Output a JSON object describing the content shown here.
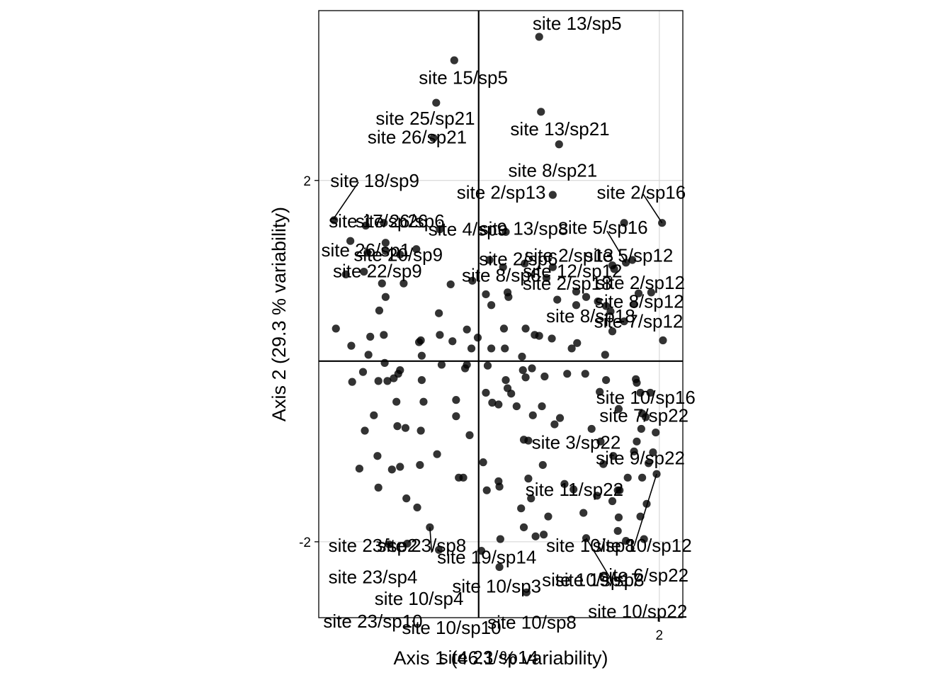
{
  "chart_data": {
    "type": "scatter",
    "title": "",
    "xlabel": "Axis 1 (46.1 % variability)",
    "ylabel": "Axis 2 (29.3 % variability)",
    "xlim": [
      -1.77,
      2.26
    ],
    "ylim": [
      -2.84,
      3.88
    ],
    "x_ticks": [
      2
    ],
    "y_ticks": [
      -2,
      2
    ],
    "grid": true,
    "reference_lines": {
      "x": 0,
      "y": 0
    },
    "point_color": "#000000",
    "point_opacity": 0.8,
    "points": [
      {
        "x": 0.67,
        "y": 3.59
      },
      {
        "x": -0.27,
        "y": 3.33
      },
      {
        "x": 0.69,
        "y": 2.76
      },
      {
        "x": -0.47,
        "y": 2.86
      },
      {
        "x": 0.89,
        "y": 2.4
      },
      {
        "x": -0.5,
        "y": 2.47
      },
      {
        "x": 0.82,
        "y": 1.84
      },
      {
        "x": 1.61,
        "y": 1.53
      },
      {
        "x": -1.6,
        "y": 1.56
      },
      {
        "x": -1.05,
        "y": 1.53
      },
      {
        "x": -0.43,
        "y": 1.46
      },
      {
        "x": -1.25,
        "y": 1.5
      },
      {
        "x": 0.3,
        "y": 1.43
      },
      {
        "x": -1.42,
        "y": 1.33
      },
      {
        "x": -1.03,
        "y": 1.31
      },
      {
        "x": -0.69,
        "y": 1.24
      },
      {
        "x": -1.03,
        "y": 1.22
      },
      {
        "x": -0.87,
        "y": 1.18
      },
      {
        "x": -1.23,
        "y": 1.2
      },
      {
        "x": 0.51,
        "y": 1.08
      },
      {
        "x": 0.12,
        "y": 1.12
      },
      {
        "x": 0.82,
        "y": 1.04
      },
      {
        "x": 1.48,
        "y": 1.06
      },
      {
        "x": 1.5,
        "y": 1.02
      },
      {
        "x": 0.27,
        "y": 1.04
      },
      {
        "x": 0.75,
        "y": 0.92
      },
      {
        "x": -1.47,
        "y": 0.96
      },
      {
        "x": -1.27,
        "y": 0.99
      },
      {
        "x": -1.07,
        "y": 0.86
      },
      {
        "x": -0.83,
        "y": 0.86
      },
      {
        "x": -0.31,
        "y": 0.85
      },
      {
        "x": -0.07,
        "y": 0.89
      },
      {
        "x": -1.03,
        "y": 0.71
      },
      {
        "x": 0.32,
        "y": 0.76
      },
      {
        "x": 1.08,
        "y": 0.77
      },
      {
        "x": 1.77,
        "y": 0.75
      },
      {
        "x": 1.19,
        "y": 0.71
      },
      {
        "x": 0.08,
        "y": 0.74
      },
      {
        "x": 0.33,
        "y": 0.71
      },
      {
        "x": 0.87,
        "y": 0.68
      },
      {
        "x": 1.32,
        "y": 0.66
      },
      {
        "x": -1.1,
        "y": 0.56
      },
      {
        "x": -0.44,
        "y": 0.53
      },
      {
        "x": 0.14,
        "y": 0.62
      },
      {
        "x": 1.46,
        "y": 0.55
      },
      {
        "x": 1.08,
        "y": 0.62
      },
      {
        "x": -1.58,
        "y": 0.36
      },
      {
        "x": -1.05,
        "y": 0.29
      },
      {
        "x": -0.43,
        "y": 0.29
      },
      {
        "x": -0.13,
        "y": 0.35
      },
      {
        "x": 0.28,
        "y": 0.36
      },
      {
        "x": 0.62,
        "y": 0.29
      },
      {
        "x": 0.52,
        "y": 0.36
      },
      {
        "x": -1.2,
        "y": 0.27
      },
      {
        "x": -0.64,
        "y": 0.23
      },
      {
        "x": -0.66,
        "y": 0.21
      },
      {
        "x": -0.29,
        "y": 0.22
      },
      {
        "x": -0.01,
        "y": 0.26
      },
      {
        "x": 0.81,
        "y": 0.25
      },
      {
        "x": 0.67,
        "y": 0.28
      },
      {
        "x": -0.08,
        "y": 0.14
      },
      {
        "x": 0.14,
        "y": 0.14
      },
      {
        "x": 0.29,
        "y": 0.14
      },
      {
        "x": 1.03,
        "y": 0.14
      },
      {
        "x": 1.09,
        "y": 0.2
      },
      {
        "x": -1.41,
        "y": 0.17
      },
      {
        "x": -1.22,
        "y": 0.07
      },
      {
        "x": -0.63,
        "y": 0.06
      },
      {
        "x": 0.48,
        "y": 0.05
      },
      {
        "x": -1.04,
        "y": -0.02
      },
      {
        "x": -0.41,
        "y": -0.04
      },
      {
        "x": -0.13,
        "y": -0.04
      },
      {
        "x": 0.59,
        "y": -0.08
      },
      {
        "x": 1.4,
        "y": 0.07
      },
      {
        "x": -1.28,
        "y": -0.12
      },
      {
        "x": -0.87,
        "y": -0.1
      },
      {
        "x": -0.15,
        "y": -0.08
      },
      {
        "x": 0.1,
        "y": -0.05
      },
      {
        "x": 0.73,
        "y": -0.17
      },
      {
        "x": 0.52,
        "y": -0.18
      },
      {
        "x": -1.01,
        "y": -0.22
      },
      {
        "x": -0.89,
        "y": -0.14
      },
      {
        "x": -0.94,
        "y": -0.19
      },
      {
        "x": 0.3,
        "y": -0.21
      },
      {
        "x": 0.49,
        "y": -0.1
      },
      {
        "x": 0.98,
        "y": -0.14
      },
      {
        "x": 1.18,
        "y": -0.14
      },
      {
        "x": 1.41,
        "y": -0.21
      },
      {
        "x": 1.74,
        "y": -0.2
      },
      {
        "x": 1.75,
        "y": -0.24
      },
      {
        "x": -1.4,
        "y": -0.23
      },
      {
        "x": -1.11,
        "y": -0.22
      },
      {
        "x": -0.63,
        "y": -0.21
      },
      {
        "x": 0.32,
        "y": -0.3
      },
      {
        "x": 0.36,
        "y": -0.36
      },
      {
        "x": 1.34,
        "y": -0.34
      },
      {
        "x": 1.79,
        "y": -0.35
      },
      {
        "x": -0.91,
        "y": -0.45
      },
      {
        "x": -0.61,
        "y": -0.45
      },
      {
        "x": -0.25,
        "y": -0.43
      },
      {
        "x": 0.15,
        "y": -0.46
      },
      {
        "x": -0.25,
        "y": -0.61
      },
      {
        "x": 0.22,
        "y": -0.48
      },
      {
        "x": 0.6,
        "y": -0.6
      },
      {
        "x": 0.42,
        "y": -0.5
      },
      {
        "x": 0.7,
        "y": -0.5
      },
      {
        "x": 1.55,
        "y": -0.53
      },
      {
        "x": 1.81,
        "y": -0.58
      },
      {
        "x": -1.16,
        "y": -0.6
      },
      {
        "x": 0.08,
        "y": -0.35
      },
      {
        "x": 0.84,
        "y": -0.7
      },
      {
        "x": 1.85,
        "y": -0.62
      },
      {
        "x": 0.9,
        "y": -0.63
      },
      {
        "x": -1.26,
        "y": -0.77
      },
      {
        "x": -0.9,
        "y": -0.72
      },
      {
        "x": -0.81,
        "y": -0.74
      },
      {
        "x": 1.25,
        "y": -0.75
      },
      {
        "x": 1.8,
        "y": -0.75
      },
      {
        "x": -0.64,
        "y": -0.77
      },
      {
        "x": -0.1,
        "y": -0.82
      },
      {
        "x": 0.5,
        "y": -0.87
      },
      {
        "x": 0.55,
        "y": -0.88
      },
      {
        "x": 1.35,
        "y": -0.89
      },
      {
        "x": 1.75,
        "y": -0.89
      },
      {
        "x": 1.96,
        "y": -0.79
      },
      {
        "x": 1.72,
        "y": -1.0
      },
      {
        "x": -1.12,
        "y": -1.05
      },
      {
        "x": -0.46,
        "y": -1.03
      },
      {
        "x": 0.71,
        "y": -1.15
      },
      {
        "x": 1.93,
        "y": -1.01
      },
      {
        "x": -0.65,
        "y": -1.15
      },
      {
        "x": 0.05,
        "y": -1.12
      },
      {
        "x": 1.49,
        "y": -1.05
      },
      {
        "x": -1.32,
        "y": -1.19
      },
      {
        "x": -0.87,
        "y": -1.17
      },
      {
        "x": 1.88,
        "y": -1.13
      },
      {
        "x": -0.96,
        "y": -1.2
      },
      {
        "x": -0.22,
        "y": -1.29
      },
      {
        "x": -0.17,
        "y": -1.29
      },
      {
        "x": 0.22,
        "y": -1.33
      },
      {
        "x": 0.55,
        "y": -1.3
      },
      {
        "x": 1.65,
        "y": -1.29
      },
      {
        "x": 0.95,
        "y": -1.36
      },
      {
        "x": 1.81,
        "y": -1.29
      },
      {
        "x": -1.11,
        "y": -1.4
      },
      {
        "x": 0.23,
        "y": -1.39
      },
      {
        "x": 0.09,
        "y": -1.43
      },
      {
        "x": -0.68,
        "y": -1.62
      },
      {
        "x": 1.31,
        "y": -1.49
      },
      {
        "x": -0.8,
        "y": -1.52
      },
      {
        "x": 0.47,
        "y": -1.63
      },
      {
        "x": 1.16,
        "y": -1.68
      },
      {
        "x": 1.55,
        "y": -1.73
      },
      {
        "x": 1.79,
        "y": -1.72
      },
      {
        "x": 1.54,
        "y": -1.88
      },
      {
        "x": -0.54,
        "y": -1.84
      },
      {
        "x": 0.5,
        "y": -1.84
      },
      {
        "x": 0.72,
        "y": -1.92
      },
      {
        "x": 0.24,
        "y": -1.97
      },
      {
        "x": 1.63,
        "y": -1.99
      },
      {
        "x": 1.83,
        "y": -1.97
      },
      {
        "x": 0.03,
        "y": -2.1
      },
      {
        "x": -0.99,
        "y": -2.03
      },
      {
        "x": -0.44,
        "y": -2.09
      },
      {
        "x": 0.23,
        "y": -2.28
      },
      {
        "x": 1.54,
        "y": -1.43
      },
      {
        "x": 1.97,
        "y": -1.25
      },
      {
        "x": 0.53,
        "y": -2.56
      },
      {
        "x": 2.03,
        "y": 1.53
      },
      {
        "x": 1.7,
        "y": 1.12
      },
      {
        "x": 1.63,
        "y": 1.09
      },
      {
        "x": 1.91,
        "y": 0.76
      },
      {
        "x": 2.04,
        "y": 0.23
      },
      {
        "x": 1.72,
        "y": 0.63
      },
      {
        "x": 1.61,
        "y": 0.44
      },
      {
        "x": 1.41,
        "y": 0.61
      },
      {
        "x": 1.48,
        "y": 0.33
      },
      {
        "x": 1.9,
        "y": -0.35
      },
      {
        "x": 1.48,
        "y": -1.55
      },
      {
        "x": 1.86,
        "y": -1.58
      },
      {
        "x": 1.56,
        "y": -1.43
      },
      {
        "x": 1.38,
        "y": -1.14
      },
      {
        "x": 1.05,
        "y": -1.42
      },
      {
        "x": 1.19,
        "y": -1.96
      },
      {
        "x": 0.77,
        "y": -1.72
      },
      {
        "x": 0.63,
        "y": -1.94
      },
      {
        "x": -0.79,
        "y": -2.02
      },
      {
        "x": 0.58,
        "y": -1.52
      }
    ],
    "labels": [
      {
        "text": "site 13/sp5",
        "x": 1.09,
        "y": 3.74
      },
      {
        "text": "site 15/sp5",
        "x": -0.17,
        "y": 3.14
      },
      {
        "text": "site 26/sp21",
        "x": -0.68,
        "y": 2.48
      },
      {
        "text": "site 13/sp21",
        "x": 0.9,
        "y": 2.57
      },
      {
        "text": "site 25/sp21",
        "x": -0.59,
        "y": 2.69
      },
      {
        "text": "site 8/sp21",
        "x": 0.82,
        "y": 2.11
      },
      {
        "text": "site 18/sp9",
        "x": -1.15,
        "y": 2.0
      },
      {
        "text": "site 2/sp13",
        "x": 0.25,
        "y": 1.87
      },
      {
        "text": "site 2/sp16",
        "x": 1.8,
        "y": 1.87
      },
      {
        "text": "site 17/sp26",
        "x": -1.11,
        "y": 1.55
      },
      {
        "text": "site 26/sp6",
        "x": -0.87,
        "y": 1.55
      },
      {
        "text": "site 4/sp9",
        "x": -0.12,
        "y": 1.46
      },
      {
        "text": "site 13/sp8",
        "x": 0.5,
        "y": 1.47
      },
      {
        "text": "site 5/sp16",
        "x": 1.38,
        "y": 1.48
      },
      {
        "text": "site 26/sp1",
        "x": -1.25,
        "y": 1.23
      },
      {
        "text": "site 20/sp9",
        "x": -0.89,
        "y": 1.18
      },
      {
        "text": "site 2/sp6",
        "x": 0.44,
        "y": 1.13
      },
      {
        "text": "site 2/sp13",
        "x": 1.0,
        "y": 1.17
      },
      {
        "text": "site 5/sp12",
        "x": 1.66,
        "y": 1.17
      },
      {
        "text": "site 22/sp9",
        "x": -1.12,
        "y": 1.0
      },
      {
        "text": "site 12/sp12",
        "x": 1.04,
        "y": 1.0
      },
      {
        "text": "site 8/sp6",
        "x": 0.25,
        "y": 0.95
      },
      {
        "text": "site 2/sp12",
        "x": 1.79,
        "y": 0.87
      },
      {
        "text": "site 2/sp18",
        "x": 0.98,
        "y": 0.86
      },
      {
        "text": "site 8/sp12",
        "x": 1.78,
        "y": 0.66
      },
      {
        "text": "site 8/sp18",
        "x": 1.24,
        "y": 0.5
      },
      {
        "text": "site 7/sp12",
        "x": 1.77,
        "y": 0.44
      },
      {
        "text": "site 10/sp16",
        "x": 1.85,
        "y": -0.4
      },
      {
        "text": "site 7/sp22",
        "x": 1.83,
        "y": -0.6
      },
      {
        "text": "site 3/sp22",
        "x": 1.08,
        "y": -0.9
      },
      {
        "text": "site 9/sp22",
        "x": 1.79,
        "y": -1.07
      },
      {
        "text": "site 11/sp22",
        "x": 1.06,
        "y": -1.42
      },
      {
        "text": "site 23/sp2",
        "x": -1.17,
        "y": -2.04
      },
      {
        "text": "site 23/sp8",
        "x": -0.63,
        "y": -2.04
      },
      {
        "text": "site 10/sp8",
        "x": 1.24,
        "y": -2.04
      },
      {
        "text": "site 10/sp12",
        "x": 1.81,
        "y": -2.04
      },
      {
        "text": "site 19/sp14",
        "x": 0.09,
        "y": -2.17
      },
      {
        "text": "site 23/sp4",
        "x": -1.17,
        "y": -2.39
      },
      {
        "text": "site 10/sp3",
        "x": 0.2,
        "y": -2.49
      },
      {
        "text": "site 19/sp3",
        "x": 1.34,
        "y": -2.42
      },
      {
        "text": "site 10/sp17",
        "x": 1.25,
        "y": -2.42
      },
      {
        "text": "site 6/sp22",
        "x": 1.83,
        "y": -2.37
      },
      {
        "text": "site 10/sp4",
        "x": -0.66,
        "y": -2.63
      },
      {
        "text": "site 10/sp22",
        "x": 1.76,
        "y": -2.77
      },
      {
        "text": "site 10/sp8",
        "x": 0.59,
        "y": -2.89
      },
      {
        "text": "site 23/sp10",
        "x": -1.17,
        "y": -2.88
      },
      {
        "text": "site 10/sp10",
        "x": -0.3,
        "y": -2.95
      },
      {
        "text": "site 23/sp14",
        "x": 0.11,
        "y": -3.28
      }
    ],
    "leader_lines": [
      {
        "x1": -1.33,
        "y1": 1.98,
        "x2": -1.61,
        "y2": 1.57
      },
      {
        "x1": 1.82,
        "y1": 1.85,
        "x2": 2.03,
        "y2": 1.53
      },
      {
        "x1": 1.42,
        "y1": 1.44,
        "x2": 1.63,
        "y2": 1.09
      },
      {
        "x1": -1.13,
        "y1": -2.0,
        "x2": -0.99,
        "y2": -2.03
      },
      {
        "x1": -0.52,
        "y1": -2.12,
        "x2": -0.54,
        "y2": -1.84
      },
      {
        "x1": 1.72,
        "y1": -2.05,
        "x2": 1.97,
        "y2": -1.25
      },
      {
        "x1": 1.48,
        "y1": -2.44,
        "x2": 1.19,
        "y2": -1.96
      }
    ]
  }
}
